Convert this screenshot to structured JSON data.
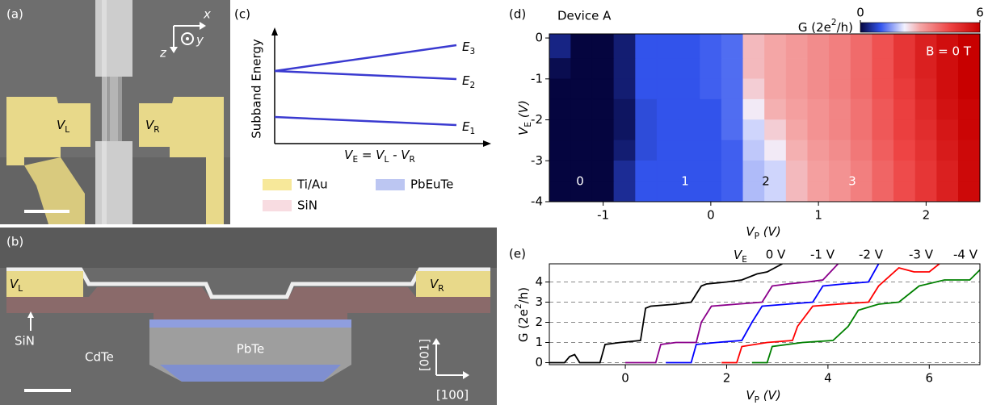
{
  "panels": {
    "a": {
      "label": "(a)",
      "axes": {
        "x": "x",
        "y": "y",
        "z": "z"
      },
      "left_contact": [
        "V",
        "L"
      ],
      "right_contact": [
        "V",
        "R"
      ]
    },
    "b": {
      "label": "(b)",
      "left_contact": [
        "V",
        "L"
      ],
      "right_contact": [
        "V",
        "R"
      ],
      "insulator": "SiN",
      "substrate": "CdTe",
      "wire": "PbTe",
      "direction_up": "[001]",
      "direction_right": "[100]"
    },
    "c": {
      "label": "(c)",
      "y_label": "Subband Energy",
      "x_label": [
        "V",
        "E",
        " = V",
        "L",
        " - V",
        "R"
      ],
      "levels": [
        [
          "E",
          "3"
        ],
        [
          "E",
          "2"
        ],
        [
          "E",
          "1"
        ]
      ],
      "legend": [
        "Ti/Au",
        "PbEuTe",
        "SiN"
      ]
    }
  },
  "chart_data": [
    {
      "type": "heatmap",
      "panel_label": "(d)",
      "title": "Device A",
      "annotation": "B = 0 T",
      "plateau_labels": [
        "0",
        "1",
        "2",
        "3"
      ],
      "xlabel": [
        "V",
        "P",
        " (V)"
      ],
      "ylabel": [
        "V",
        "E",
        " (V)"
      ],
      "colorbar_label": [
        "G (2e",
        "2",
        "/h)"
      ],
      "xedges": [
        -1.5,
        -1.3,
        -1.1,
        -0.9,
        -0.7,
        -0.5,
        -0.3,
        -0.1,
        0.1,
        0.3,
        0.5,
        0.7,
        0.9,
        1.1,
        1.3,
        1.5,
        1.7,
        1.9,
        2.1,
        2.3,
        2.5
      ],
      "yedges": [
        0.1,
        -0.5,
        -1,
        -1.5,
        -2,
        -2.5,
        -3,
        -3.5,
        -4
      ],
      "z": [
        [
          0.4,
          0,
          0,
          0.3,
          1,
          1,
          1,
          1.1,
          1.2,
          2.8,
          3,
          3.2,
          3.4,
          3.6,
          3.9,
          4.3,
          4.8,
          5.3,
          5.7,
          6
        ],
        [
          0.1,
          0,
          0,
          0.3,
          1,
          1,
          1,
          1.1,
          1.2,
          2.8,
          3,
          3.2,
          3.4,
          3.6,
          3.9,
          4.3,
          4.8,
          5.3,
          5.7,
          6
        ],
        [
          0,
          0,
          0,
          0.3,
          1,
          1,
          1,
          1.1,
          1.2,
          2.6,
          3,
          3.2,
          3.4,
          3.6,
          3.9,
          4.3,
          4.7,
          5.2,
          5.7,
          6
        ],
        [
          0,
          0,
          0,
          0.2,
          0.9,
          1,
          1,
          1,
          1.2,
          2.3,
          2.9,
          3.1,
          3.3,
          3.5,
          3.8,
          4.2,
          4.6,
          5.1,
          5.6,
          5.9
        ],
        [
          0,
          0,
          0,
          0.2,
          0.9,
          1,
          1,
          1,
          1.2,
          2,
          2.6,
          3,
          3.3,
          3.5,
          3.8,
          4.2,
          4.6,
          5,
          5.5,
          5.9
        ],
        [
          0,
          0,
          0,
          0.3,
          0.9,
          1,
          1,
          1,
          1.1,
          1.9,
          2.3,
          2.9,
          3.2,
          3.4,
          3.7,
          4.1,
          4.5,
          4.9,
          5.4,
          5.8
        ],
        [
          0,
          0,
          0,
          0.5,
          1,
          1,
          1,
          1,
          1.1,
          1.8,
          2,
          2.8,
          3.1,
          3.3,
          3.6,
          4,
          4.4,
          4.8,
          5.3,
          5.8
        ],
        [
          0,
          0,
          0,
          0.5,
          1,
          1,
          1,
          1,
          1.1,
          1.8,
          2,
          2.8,
          3.1,
          3.3,
          3.6,
          4,
          4.4,
          4.8,
          5.3,
          5.8
        ]
      ],
      "xlim": [
        -1.5,
        2.5
      ],
      "ylim": [
        -4,
        0.1
      ],
      "xticks": [
        -1,
        0,
        1,
        2
      ],
      "yticks": [
        0,
        -1,
        -2,
        -3,
        -4
      ],
      "zlim": [
        0,
        6
      ],
      "zticks": [
        0,
        6
      ]
    },
    {
      "type": "line",
      "panel_label": "(e)",
      "xlabel": [
        "V",
        "P",
        " (V)"
      ],
      "ylabel": [
        "G (2e",
        "2",
        "/h)"
      ],
      "legend_title": [
        "V",
        "E"
      ],
      "series": [
        {
          "name": "0 V",
          "color": "#000000",
          "x": [
            -1.5,
            -1.2,
            -1.1,
            -1.0,
            -0.9,
            -0.5,
            -0.4,
            -0.1,
            0.3,
            0.4,
            0.5,
            1.0,
            1.3,
            1.5,
            1.6,
            2.0,
            2.3,
            2.6,
            2.8,
            3.1
          ],
          "values": [
            0,
            0,
            0.3,
            0.4,
            0,
            0,
            0.9,
            1.0,
            1.1,
            2.7,
            2.8,
            2.9,
            3.0,
            3.8,
            3.9,
            4.0,
            4.1,
            4.4,
            4.5,
            4.9
          ]
        },
        {
          "name": "-1 V",
          "color": "#8b008b",
          "x": [
            0,
            0.6,
            0.7,
            1.0,
            1.4,
            1.5,
            1.7,
            2.2,
            2.7,
            2.9,
            3.2,
            3.6,
            3.9,
            4.2
          ],
          "values": [
            0,
            0,
            0.9,
            1.0,
            1.0,
            2.0,
            2.8,
            2.9,
            3.0,
            3.8,
            3.9,
            4.0,
            4.1,
            4.9
          ]
        },
        {
          "name": "-2 V",
          "color": "#0000ff",
          "x": [
            0.8,
            1.3,
            1.4,
            1.8,
            2.3,
            2.5,
            2.7,
            3.2,
            3.7,
            3.9,
            4.3,
            4.8,
            5.0
          ],
          "values": [
            0,
            0,
            0.9,
            1.0,
            1.1,
            2.0,
            2.8,
            2.9,
            3.0,
            3.8,
            3.9,
            4.0,
            4.9
          ]
        },
        {
          "name": "-3 V",
          "color": "#ff0000",
          "x": [
            1.9,
            2.2,
            2.3,
            2.8,
            3.3,
            3.4,
            3.7,
            4.2,
            4.8,
            5.0,
            5.4,
            5.7,
            6.0,
            6.2
          ],
          "values": [
            0,
            0,
            0.8,
            1.0,
            1.1,
            1.8,
            2.8,
            2.9,
            3.0,
            3.8,
            4.7,
            4.5,
            4.5,
            4.9
          ]
        },
        {
          "name": "-4 V",
          "color": "#008000",
          "x": [
            2.5,
            2.8,
            2.9,
            3.5,
            4.1,
            4.4,
            4.6,
            5.0,
            5.4,
            5.8,
            6.3,
            6.8,
            7.0
          ],
          "values": [
            0,
            0,
            0.8,
            1.0,
            1.1,
            1.8,
            2.6,
            2.9,
            3.0,
            3.8,
            4.1,
            4.1,
            4.6
          ]
        }
      ],
      "xlim": [
        -1.5,
        7
      ],
      "ylim": [
        -0.1,
        4.9
      ],
      "xticks": [
        0,
        2,
        4,
        6
      ],
      "yticks": [
        0,
        1,
        2,
        3,
        4
      ],
      "grid": true
    }
  ]
}
